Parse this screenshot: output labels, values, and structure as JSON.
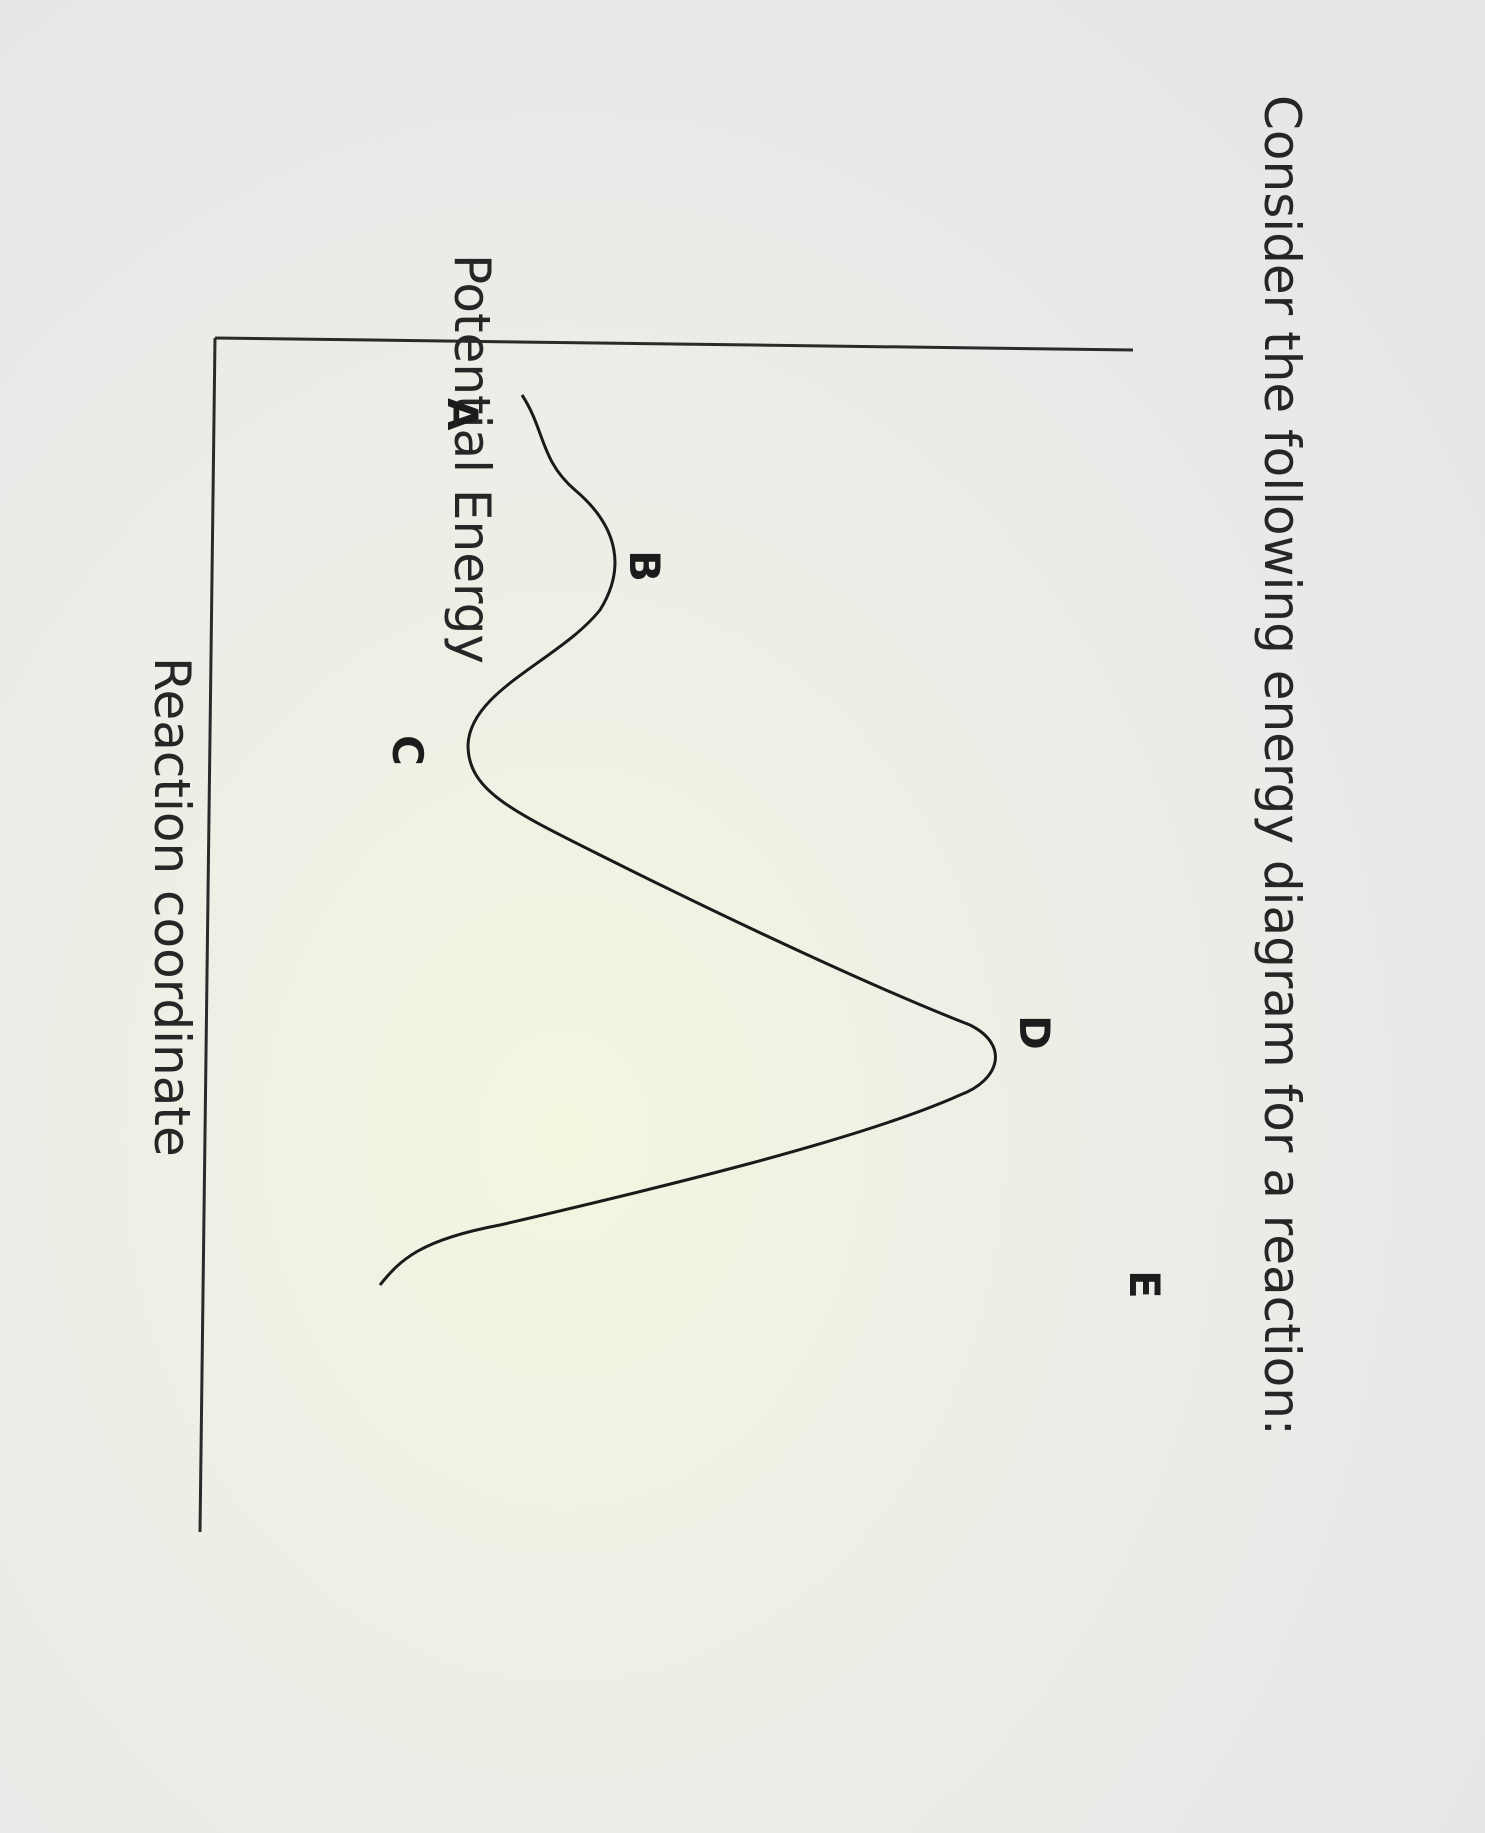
{
  "question": {
    "prompt": "Consider the following energy diagram for a reaction:"
  },
  "diagram": {
    "y_axis_label": "Potential Energy",
    "x_axis_label": "Reaction coordinate",
    "points": [
      {
        "label": "A"
      },
      {
        "label": "B"
      },
      {
        "label": "C"
      },
      {
        "label": "D"
      },
      {
        "label": "E"
      }
    ]
  }
}
